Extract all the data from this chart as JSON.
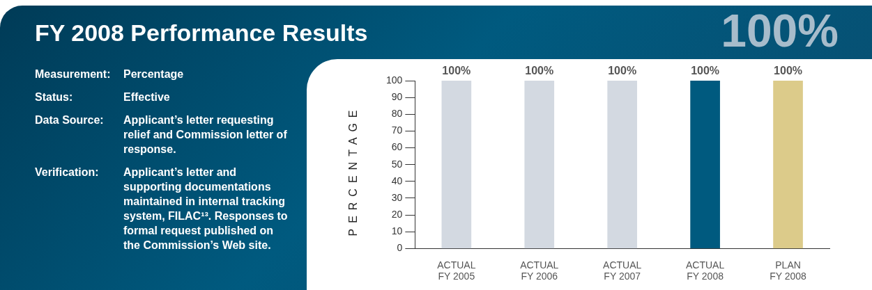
{
  "chart_data": [
    {
      "type": "other",
      "title": "FY 2008 Performance Results",
      "subtitle": "100%",
      "annotations": [
        "Measurement:",
        "Percentage",
        "Status:",
        "Effective",
        "Data Source:",
        "Applicant’s letter requesting relief and Commission letter of response.",
        "Verification:",
        "Applicant’s letter and supporting documentations maintained in internal tracking system, FILAC¹³. Responses to formal request published on the Commission’s Web site."
      ]
    },
    {
      "type": "bar",
      "ylabel": "PERCENTAGE",
      "categories": [
        "ACTUAL\nFY 2005",
        "ACTUAL\nFY 2006",
        "ACTUAL\nFY 2007",
        "ACTUAL\nFY 2008",
        "PLAN\nFY 2008"
      ],
      "values": [
        100,
        100,
        100,
        100,
        100
      ],
      "colors": [
        "#d3d9e1",
        "#d3d9e1",
        "#d3d9e1",
        "#005a7f",
        "#dccb8a"
      ],
      "value_labels": [
        "100%",
        "100%",
        "100%",
        "100%",
        "100%"
      ],
      "ylim": [
        0,
        100
      ],
      "yticks": [
        0,
        10,
        20,
        30,
        40,
        50,
        60,
        70,
        80,
        90,
        100
      ]
    }
  ]
}
